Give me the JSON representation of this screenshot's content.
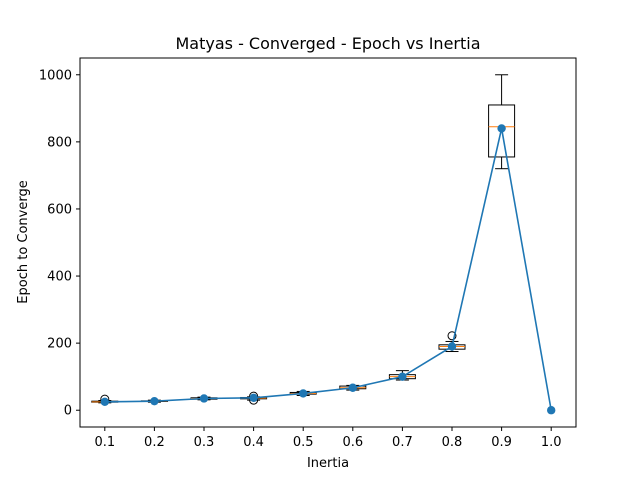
{
  "chart_data": {
    "type": "line",
    "title": "Matyas - Converged - Epoch vs Inertia",
    "xlabel": "Inertia",
    "ylabel": "Epoch to Converge",
    "x": [
      0.1,
      0.2,
      0.3,
      0.4,
      0.5,
      0.6,
      0.7,
      0.8,
      0.9,
      1.0
    ],
    "x_tick_labels": [
      "0.1",
      "0.2",
      "0.3",
      "0.4",
      "0.5",
      "0.6",
      "0.7",
      "0.8",
      "0.9",
      "1.0"
    ],
    "y_ticks": [
      0,
      200,
      400,
      600,
      800,
      1000
    ],
    "ylim": [
      -50,
      1050
    ],
    "series": [
      {
        "values": [
          25,
          27,
          35,
          37,
          50,
          67,
          100,
          190,
          840,
          0
        ],
        "color": "#1f77b4"
      }
    ],
    "boxplots": [
      {
        "x": 0.1,
        "whislo": 22,
        "q1": 24,
        "med": 25,
        "q3": 27,
        "whishi": 29,
        "fliers": [
          33
        ]
      },
      {
        "x": 0.2,
        "whislo": 24,
        "q1": 26,
        "med": 27,
        "q3": 28,
        "whishi": 30,
        "fliers": []
      },
      {
        "x": 0.3,
        "whislo": 31,
        "q1": 33,
        "med": 35,
        "q3": 37,
        "whishi": 39,
        "fliers": []
      },
      {
        "x": 0.4,
        "whislo": 30,
        "q1": 34,
        "med": 36,
        "q3": 38,
        "whishi": 40,
        "fliers": [
          30,
          42
        ]
      },
      {
        "x": 0.5,
        "whislo": 44,
        "q1": 48,
        "med": 50,
        "q3": 53,
        "whishi": 56,
        "fliers": []
      },
      {
        "x": 0.6,
        "whislo": 60,
        "q1": 64,
        "med": 67,
        "q3": 72,
        "whishi": 74,
        "fliers": []
      },
      {
        "x": 0.7,
        "whislo": 90,
        "q1": 94,
        "med": 100,
        "q3": 106,
        "whishi": 118,
        "fliers": []
      },
      {
        "x": 0.8,
        "whislo": 175,
        "q1": 182,
        "med": 190,
        "q3": 195,
        "whishi": 205,
        "fliers": [
          222
        ]
      },
      {
        "x": 0.9,
        "whislo": 720,
        "q1": 755,
        "med": 845,
        "q3": 910,
        "whishi": 1000,
        "fliers": []
      }
    ],
    "box_color": "#000000",
    "median_color": "#ff7f0e",
    "grid": false
  }
}
